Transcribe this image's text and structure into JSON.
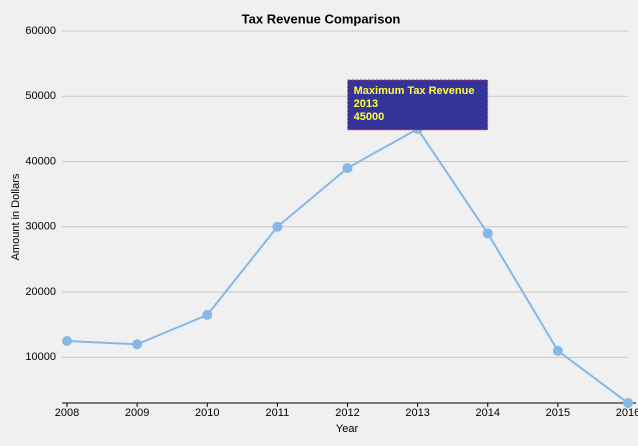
{
  "chart_data": {
    "type": "line",
    "title": "Tax Revenue Comparison",
    "x_label": "Year",
    "y_label": "Amount in Dollars",
    "x": [
      2008,
      2009,
      2010,
      2011,
      2012,
      2013,
      2014,
      2015,
      2016
    ],
    "series": [
      {
        "color": "#84b8e8",
        "values": [
          12500,
          12000,
          16500,
          30000,
          39000,
          45000,
          29000,
          11000,
          3000
        ]
      }
    ],
    "xlim": [
      2008,
      2016
    ],
    "xticks": [
      2008,
      2009,
      2010,
      2011,
      2012,
      2013,
      2014,
      2015,
      2016
    ],
    "ylim": [
      3000,
      60000
    ],
    "yticks": [
      10000,
      20000,
      30000,
      40000,
      50000,
      60000
    ],
    "grid": true,
    "annotation": {
      "title": "Maximum Tax Revenue",
      "index": 5,
      "fill": "#333399",
      "border": "#ff3030",
      "text_color": "#ffff33"
    }
  }
}
